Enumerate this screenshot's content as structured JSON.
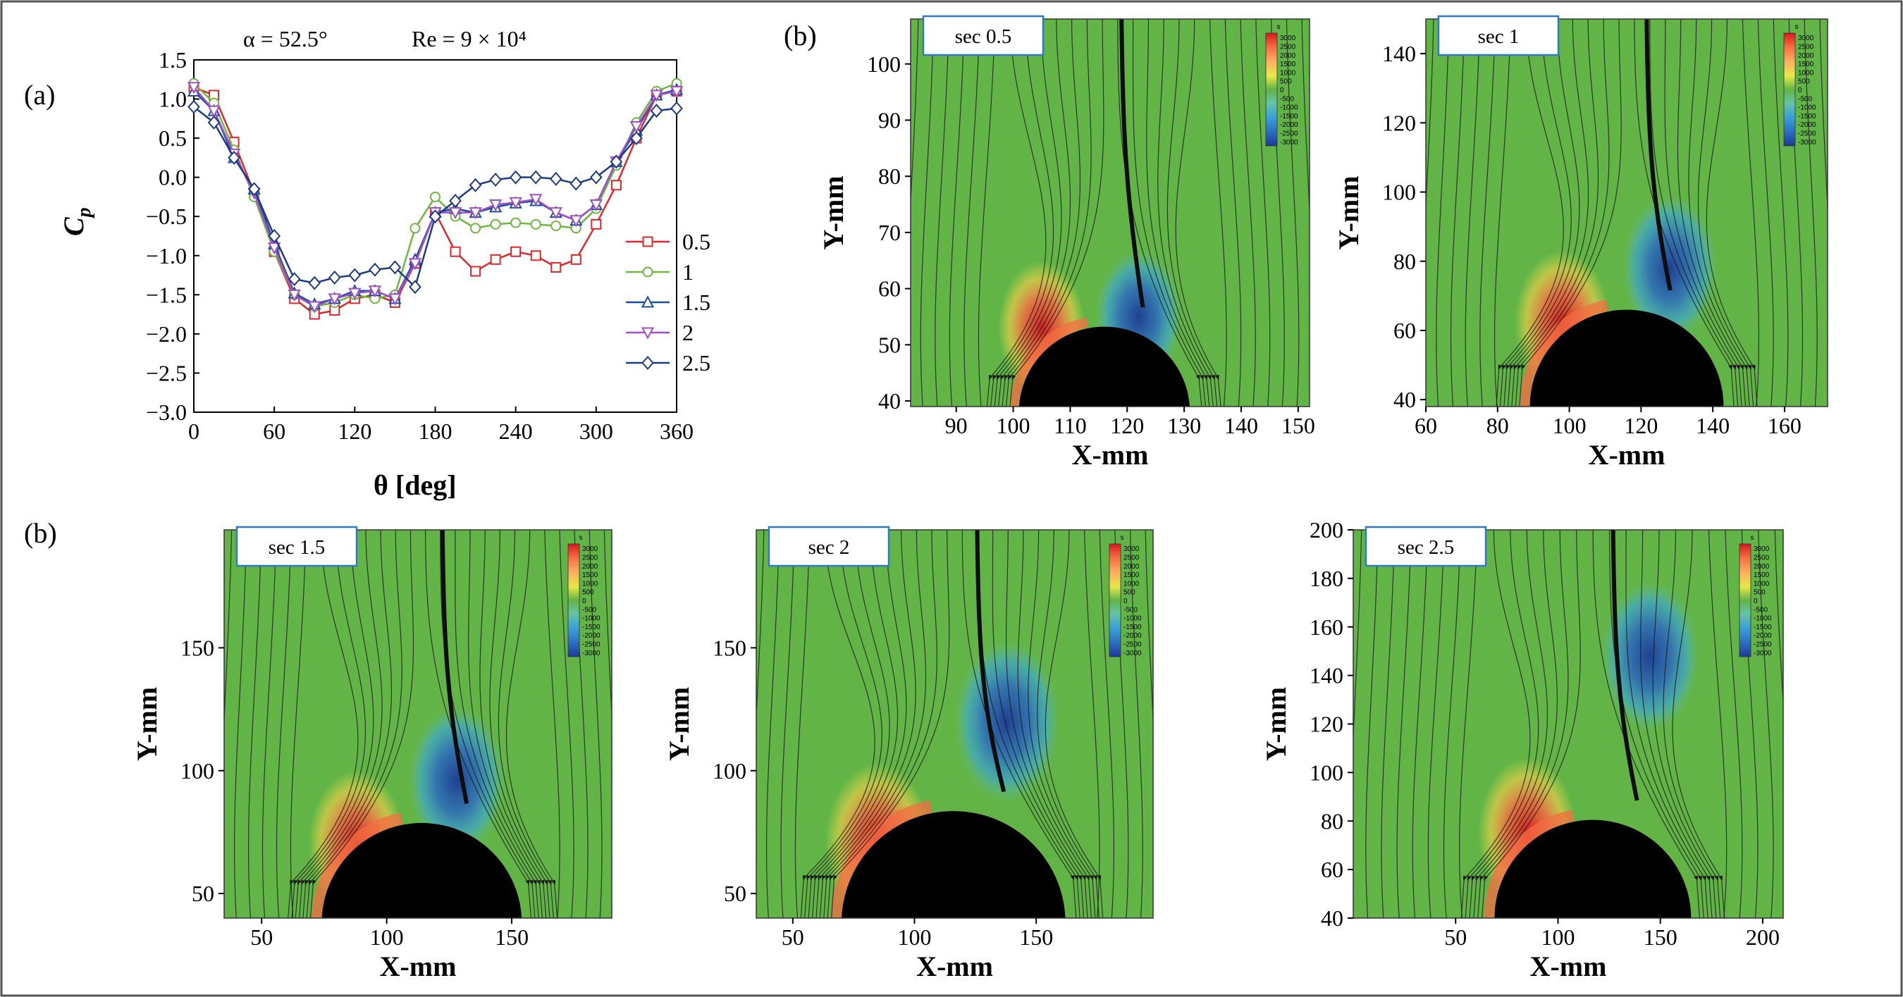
{
  "figure": {
    "panel_a_label": "(a)",
    "panel_b_label_top": "(b)",
    "panel_b_label_bottom": "(b)",
    "alpha_text": "α = 52.5°",
    "re_text": "Re = 9 × 10⁴",
    "cp_label_main": "C",
    "cp_label_sub": "p",
    "theta_label": "θ [deg]",
    "flow_xlabel": "X-mm",
    "flow_ylabel": "Y-mm",
    "colorbar_title": "s",
    "colorbar_levels": [
      "3000",
      "2500",
      "2000",
      "1500",
      "1000",
      "500",
      "0",
      "-500",
      "-1000",
      "-1500",
      "-2000",
      "-2500",
      "-3000"
    ],
    "colors": {
      "red": "#e0262a",
      "green": "#6db83f",
      "blue": "#1b4ea1",
      "purple": "#a04fc8",
      "navy": "#1f3a86",
      "field_green": "#62b446",
      "frame_blue": "#2f79c8"
    }
  },
  "chart_data": [
    {
      "type": "line",
      "title": "α = 52.5°   Re = 9 × 10⁴",
      "xlabel": "θ [deg]",
      "ylabel": "Cp",
      "xlim": [
        0,
        360
      ],
      "ylim": [
        -3.0,
        1.5
      ],
      "xticks": [
        0,
        60,
        120,
        180,
        240,
        300,
        360
      ],
      "yticks": [
        1.5,
        1.0,
        0.5,
        0.0,
        -0.5,
        -1.0,
        -1.5,
        -2.0,
        -2.5,
        -3.0
      ],
      "ytick_labels": [
        "1.5",
        "1.0",
        "0.5",
        "0.0",
        "−0.5",
        "−1.0",
        "−1.5",
        "−2.0",
        "−2.5",
        "−3.0"
      ],
      "legend_position": "right",
      "series": [
        {
          "name": "0.5",
          "color": "#e0262a",
          "marker": "square",
          "x": [
            0,
            15,
            30,
            45,
            60,
            75,
            90,
            105,
            120,
            135,
            150,
            165,
            180,
            195,
            210,
            225,
            240,
            255,
            270,
            285,
            300,
            315,
            330,
            345,
            360
          ],
          "y": [
            1.15,
            1.05,
            0.45,
            -0.2,
            -0.95,
            -1.55,
            -1.75,
            -1.7,
            -1.55,
            -1.5,
            -1.6,
            -1.1,
            -0.45,
            -0.95,
            -1.2,
            -1.05,
            -0.95,
            -1.0,
            -1.15,
            -1.05,
            -0.6,
            -0.1,
            0.5,
            1.05,
            1.1
          ]
        },
        {
          "name": "1",
          "color": "#6db83f",
          "marker": "circle",
          "x": [
            0,
            15,
            30,
            45,
            60,
            75,
            90,
            105,
            120,
            135,
            150,
            165,
            180,
            195,
            210,
            225,
            240,
            255,
            270,
            285,
            300,
            315,
            330,
            345,
            360
          ],
          "y": [
            1.2,
            0.95,
            0.35,
            -0.25,
            -0.95,
            -1.5,
            -1.65,
            -1.6,
            -1.5,
            -1.55,
            -1.5,
            -0.65,
            -0.25,
            -0.5,
            -0.65,
            -0.6,
            -0.58,
            -0.6,
            -0.62,
            -0.65,
            -0.4,
            0.15,
            0.7,
            1.1,
            1.2
          ]
        },
        {
          "name": "1.5",
          "color": "#1b4ea1",
          "marker": "triangle-up",
          "x": [
            0,
            15,
            30,
            45,
            60,
            75,
            90,
            105,
            120,
            135,
            150,
            165,
            180,
            195,
            210,
            225,
            240,
            255,
            270,
            285,
            300,
            315,
            330,
            345,
            360
          ],
          "y": [
            1.1,
            0.85,
            0.25,
            -0.15,
            -0.85,
            -1.48,
            -1.62,
            -1.55,
            -1.45,
            -1.45,
            -1.55,
            -1.05,
            -0.45,
            -0.4,
            -0.45,
            -0.38,
            -0.33,
            -0.3,
            -0.45,
            -0.55,
            -0.35,
            0.2,
            0.6,
            1.05,
            1.12
          ]
        },
        {
          "name": "2",
          "color": "#a04fc8",
          "marker": "triangle-down",
          "x": [
            0,
            15,
            30,
            45,
            60,
            75,
            90,
            105,
            120,
            135,
            150,
            165,
            180,
            195,
            210,
            225,
            240,
            255,
            270,
            285,
            300,
            315,
            330,
            345,
            360
          ],
          "y": [
            1.15,
            0.85,
            0.3,
            -0.2,
            -0.9,
            -1.5,
            -1.65,
            -1.55,
            -1.48,
            -1.45,
            -1.55,
            -1.1,
            -0.45,
            -0.45,
            -0.45,
            -0.35,
            -0.32,
            -0.28,
            -0.45,
            -0.55,
            -0.35,
            0.2,
            0.65,
            1.05,
            1.1
          ]
        },
        {
          "name": "2.5",
          "color": "#1f3a86",
          "marker": "diamond",
          "x": [
            0,
            15,
            30,
            45,
            60,
            75,
            90,
            105,
            120,
            135,
            150,
            165,
            180,
            195,
            210,
            225,
            240,
            255,
            270,
            285,
            300,
            315,
            330,
            345,
            360
          ],
          "y": [
            0.9,
            0.7,
            0.25,
            -0.15,
            -0.75,
            -1.3,
            -1.35,
            -1.28,
            -1.25,
            -1.18,
            -1.15,
            -1.4,
            -0.5,
            -0.3,
            -0.1,
            -0.03,
            0.0,
            0.0,
            -0.02,
            -0.08,
            0.0,
            0.2,
            0.5,
            0.85,
            0.88
          ]
        }
      ]
    },
    {
      "type": "heatmap",
      "label": "sec 0.5",
      "xlabel": "X-mm",
      "ylabel": "Y-mm",
      "xlim": [
        82,
        152
      ],
      "ylim": [
        39,
        108
      ],
      "xticks": [
        90,
        100,
        110,
        120,
        130,
        140,
        150
      ],
      "yticks": [
        40,
        50,
        60,
        70,
        80,
        90,
        100
      ],
      "cylinder": {
        "cx": 116,
        "cy": 38,
        "r": 15
      },
      "hotspots": [
        {
          "x": 105,
          "y": 53,
          "sign": 1
        },
        {
          "x": 122,
          "y": 55,
          "sign": -1
        }
      ]
    },
    {
      "type": "heatmap",
      "label": "sec 1",
      "xlabel": "X-mm",
      "ylabel": "Y-mm",
      "xlim": [
        60,
        172
      ],
      "ylim": [
        38,
        150
      ],
      "xticks": [
        60,
        80,
        100,
        120,
        140,
        160
      ],
      "yticks": [
        40,
        60,
        80,
        100,
        120,
        140
      ],
      "cylinder": {
        "cx": 116,
        "cy": 38,
        "r": 27
      },
      "hotspots": [
        {
          "x": 98,
          "y": 62,
          "sign": 1
        },
        {
          "x": 128,
          "y": 78,
          "sign": -1
        }
      ]
    },
    {
      "type": "heatmap",
      "label": "sec 1.5",
      "xlabel": "X-mm",
      "ylabel": "Y-mm",
      "xlim": [
        35,
        190
      ],
      "ylim": [
        40,
        198
      ],
      "xticks": [
        50,
        100,
        150
      ],
      "yticks": [
        50,
        100,
        150
      ],
      "cylinder": {
        "cx": 114,
        "cy": 38,
        "r": 40
      },
      "hotspots": [
        {
          "x": 88,
          "y": 70,
          "sign": 1
        },
        {
          "x": 128,
          "y": 96,
          "sign": -1
        }
      ]
    },
    {
      "type": "heatmap",
      "label": "sec 2",
      "xlabel": "X-mm",
      "ylabel": "Y-mm",
      "xlim": [
        35,
        198
      ],
      "ylim": [
        40,
        198
      ],
      "xticks": [
        50,
        100,
        150
      ],
      "yticks": [
        50,
        100,
        150
      ],
      "cylinder": {
        "cx": 116,
        "cy": 38,
        "r": 46
      },
      "hotspots": [
        {
          "x": 85,
          "y": 70,
          "sign": 1
        },
        {
          "x": 138,
          "y": 120,
          "sign": -1
        }
      ]
    },
    {
      "type": "heatmap",
      "label": "sec 2.5",
      "xlabel": "X-mm",
      "ylabel": "Y-mm",
      "xlim": [
        0,
        210
      ],
      "ylim": [
        40,
        200
      ],
      "xticks": [
        50,
        100,
        150,
        200
      ],
      "yticks": [
        40,
        60,
        80,
        100,
        120,
        140,
        160,
        180,
        200
      ],
      "cylinder": {
        "cx": 117,
        "cy": 40,
        "r": 48
      },
      "hotspots": [
        {
          "x": 85,
          "y": 75,
          "sign": 1
        },
        {
          "x": 145,
          "y": 148,
          "sign": -1
        }
      ]
    }
  ]
}
